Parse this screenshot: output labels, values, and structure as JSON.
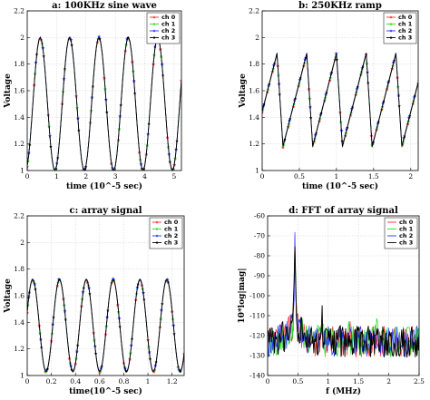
{
  "colors": {
    "ch0": "#ff2a2a",
    "ch1": "#22dd22",
    "ch2": "#2233ff",
    "ch3": "#000000",
    "grid": "#cfcfcf",
    "axis": "#000000"
  },
  "chart_data": [
    {
      "type": "line",
      "title": "a: 100KHz sine wave",
      "xlabel": "time (10^-5 sec)",
      "ylabel": "Voltage",
      "xlim": [
        0,
        5.25
      ],
      "ylim": [
        1,
        2.2
      ],
      "xticks": [
        0,
        1,
        2,
        3,
        4,
        5
      ],
      "xtick_labels": [
        "0",
        "1",
        "2",
        "3",
        "4",
        "5"
      ],
      "yticks": [
        1,
        1.2,
        1.4,
        1.6,
        1.8,
        2,
        2.2
      ],
      "ytick_labels": [
        "1",
        "1.2",
        "1.4",
        "1.6",
        "1.8",
        "2",
        "2.2"
      ],
      "grid": true,
      "legend": "top-right",
      "signal": {
        "shape": "sine",
        "frequency": 1.0,
        "phase": -1.2,
        "low": 1.0,
        "high": 2.0,
        "points": 22,
        "sample_step": 0.05
      },
      "series": [
        {
          "name": "ch 0",
          "color_key": "ch0",
          "marker": "*"
        },
        {
          "name": "ch 1",
          "color_key": "ch1",
          "marker": "*"
        },
        {
          "name": "ch 2",
          "color_key": "ch2",
          "marker": "*"
        },
        {
          "name": "ch 3",
          "color_key": "ch3",
          "marker": "*"
        }
      ]
    },
    {
      "type": "line",
      "title": "b: 250KHz ramp",
      "xlabel": "time (10^-5 sec)",
      "ylabel": "Voltage",
      "xlim": [
        0,
        2.1
      ],
      "ylim": [
        1,
        2.2
      ],
      "xticks": [
        0,
        0.5,
        1,
        1.5,
        2
      ],
      "xtick_labels": [
        "0",
        "0.5",
        "1",
        "1.5",
        "2"
      ],
      "yticks": [
        1,
        1.2,
        1.4,
        1.6,
        1.8,
        2,
        2.2
      ],
      "ytick_labels": [
        "1",
        "1.2",
        "1.4",
        "1.6",
        "1.8",
        "2",
        "2.2"
      ],
      "grid": true,
      "legend": "top-right",
      "signal": {
        "shape": "ramp",
        "period": 0.4,
        "rise_fraction": 0.8,
        "offset": 0.12,
        "low": 1.18,
        "high": 1.88,
        "points": 30,
        "sample_step": 0.005
      },
      "series": [
        {
          "name": "ch 0",
          "color_key": "ch0",
          "marker": "*"
        },
        {
          "name": "ch 1",
          "color_key": "ch1",
          "marker": "*"
        },
        {
          "name": "ch 2",
          "color_key": "ch2",
          "marker": "*"
        },
        {
          "name": "ch 3",
          "color_key": "ch3",
          "marker": "*"
        }
      ]
    },
    {
      "type": "line",
      "title": "c: array signal",
      "xlabel": "time(10^-5 sec)",
      "ylabel": "Voltage",
      "xlim": [
        0,
        1.3
      ],
      "ylim": [
        1,
        2.2
      ],
      "xticks": [
        0,
        0.2,
        0.4,
        0.6,
        0.8,
        1,
        1.2
      ],
      "xtick_labels": [
        "0",
        "0.2",
        "0.4",
        "0.6",
        "0.8",
        "1",
        "1.2"
      ],
      "yticks": [
        1,
        1.2,
        1.4,
        1.6,
        1.8,
        2,
        2.2
      ],
      "ytick_labels": [
        "1",
        "1.2",
        "1.4",
        "1.6",
        "1.8",
        "2",
        "2.2"
      ],
      "grid": true,
      "legend": "top-right",
      "signal": {
        "shape": "sine",
        "frequency": 4.5,
        "phase": 0.3,
        "low": 1.03,
        "high": 1.72,
        "points": 26,
        "sample_step": 0.004
      },
      "series": [
        {
          "name": "ch 0",
          "color_key": "ch0",
          "marker": "*"
        },
        {
          "name": "ch 1",
          "color_key": "ch1",
          "marker": "*"
        },
        {
          "name": "ch 2",
          "color_key": "ch2",
          "marker": "*"
        },
        {
          "name": "ch 3",
          "color_key": "ch3",
          "marker": "*"
        }
      ]
    },
    {
      "type": "line",
      "title": "d: FFT of array signal",
      "xlabel": "f (MHz)",
      "ylabel": "10*log|mag|",
      "xlim": [
        0,
        2.5
      ],
      "ylim": [
        -140,
        -60
      ],
      "xticks": [
        0,
        0.5,
        1,
        1.5,
        2,
        2.5
      ],
      "xtick_labels": [
        "0",
        "0.5",
        "1",
        "1.5",
        "2",
        "2.5"
      ],
      "yticks": [
        -140,
        -130,
        -120,
        -110,
        -100,
        -90,
        -80,
        -70,
        -60
      ],
      "ytick_labels": [
        "-140",
        "-130",
        "-120",
        "-110",
        "-100",
        "-90",
        "-80",
        "-70",
        "-60"
      ],
      "grid": true,
      "legend": "top-right",
      "signal": {
        "shape": "spectrum",
        "peak_freq": 0.45,
        "peak_value": -69,
        "floor": -123,
        "secondary_peaks": [
          [
            0.9,
            -112
          ],
          [
            1.35,
            -115
          ],
          [
            1.8,
            -117
          ]
        ],
        "sample_step": 0.0125
      },
      "series": [
        {
          "name": "ch 0",
          "color_key": "ch0",
          "marker": ""
        },
        {
          "name": "ch 1",
          "color_key": "ch1",
          "marker": ""
        },
        {
          "name": "ch 2",
          "color_key": "ch2",
          "marker": ""
        },
        {
          "name": "ch 3",
          "color_key": "ch3",
          "marker": ""
        }
      ]
    }
  ]
}
